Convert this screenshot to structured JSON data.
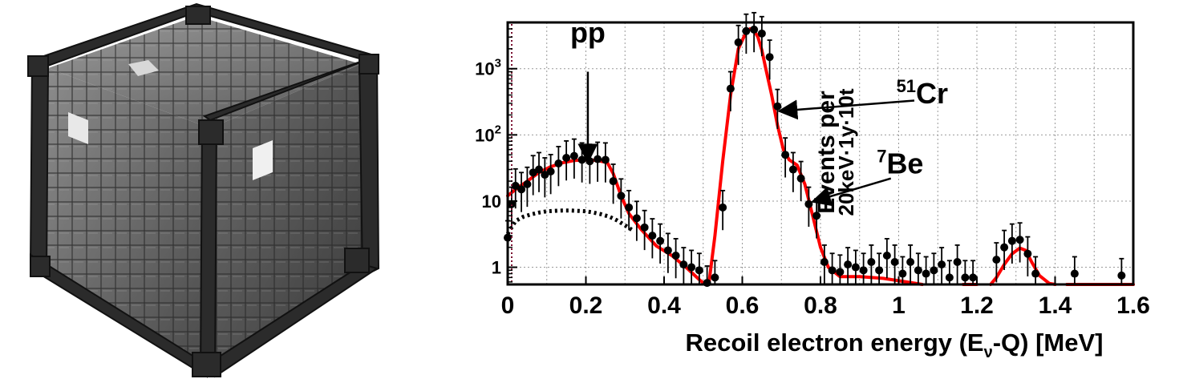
{
  "detector": {
    "style": "grayscale 3D cubic lattice detector with framed edges"
  },
  "chart_data": {
    "type": "scatter",
    "xlabel_main": "Recoil electron energy (E",
    "xlabel_sub": "ν",
    "xlabel_tail": "-Q) [MeV]",
    "ylabel_line1": "Events per",
    "ylabel_line2": "20keV·1y·10t",
    "xlim": [
      0,
      1.6
    ],
    "ylim": [
      0.55,
      5000
    ],
    "yscale": "log",
    "grid": true,
    "x_ticks": [
      {
        "value": 0,
        "label": "0"
      },
      {
        "value": 0.2,
        "label": "0.2"
      },
      {
        "value": 0.4,
        "label": "0.4"
      },
      {
        "value": 0.6,
        "label": "0.6"
      },
      {
        "value": 0.8,
        "label": "0.8"
      },
      {
        "value": 1.0,
        "label": "1"
      },
      {
        "value": 1.2,
        "label": "1.2"
      },
      {
        "value": 1.4,
        "label": "1.4"
      },
      {
        "value": 1.6,
        "label": "1.6"
      }
    ],
    "y_ticks": [
      {
        "value": 1,
        "label": "1",
        "sup": ""
      },
      {
        "value": 10,
        "label": "10",
        "sup": ""
      },
      {
        "value": 100,
        "label": "10",
        "sup": "2"
      },
      {
        "value": 1000,
        "label": "10",
        "sup": "3"
      }
    ],
    "annotations": [
      {
        "base": "pp",
        "sup": "",
        "text_x": 0.205,
        "text_y": 2500,
        "arrow_from": [
          0.205,
          900
        ],
        "arrow_to": [
          0.205,
          42
        ]
      },
      {
        "base": "Cr",
        "sup": "51",
        "text_x": 1.035,
        "text_y": 300,
        "arrow_from": [
          1.04,
          330
        ],
        "arrow_to": [
          0.7,
          230
        ]
      },
      {
        "base": "Be",
        "sup": "7",
        "text_x": 0.985,
        "text_y": 26,
        "arrow_from": [
          0.98,
          22
        ],
        "arrow_to": [
          0.785,
          10
        ]
      }
    ],
    "series": [
      {
        "name": "",
        "style": "solid",
        "color": "#ff0000",
        "x": [
          0.0,
          0.02,
          0.05,
          0.08,
          0.11,
          0.14,
          0.17,
          0.2,
          0.23,
          0.255,
          0.27,
          0.29,
          0.31,
          0.34,
          0.38,
          0.42,
          0.46,
          0.49,
          0.505,
          0.515,
          0.53,
          0.55,
          0.57,
          0.59,
          0.61,
          0.62,
          0.63,
          0.64,
          0.65,
          0.66,
          0.675,
          0.69,
          0.705,
          0.72,
          0.74,
          0.76,
          0.78,
          0.8,
          0.82,
          0.85,
          0.9,
          0.96,
          1.02,
          1.06
        ],
        "y": [
          12,
          15,
          20,
          27,
          33,
          38,
          41,
          42,
          41,
          38,
          26,
          12,
          6.5,
          3.8,
          2.1,
          1.5,
          0.95,
          0.65,
          0.55,
          0.6,
          3,
          40,
          400,
          2000,
          3600,
          4000,
          3800,
          3000,
          1900,
          1000,
          400,
          140,
          60,
          42,
          35,
          18,
          6,
          2,
          1,
          0.72,
          0.72,
          0.68,
          0.6,
          0.55
        ]
      },
      {
        "name": "",
        "style": "solid",
        "color": "#ff0000",
        "x": [
          1.165,
          1.2
        ],
        "y": [
          0.55,
          0.55
        ]
      },
      {
        "name": "",
        "style": "solid",
        "color": "#ff0000",
        "x": [
          1.235,
          1.25,
          1.27,
          1.29,
          1.31,
          1.325,
          1.34,
          1.36,
          1.385,
          1.4
        ],
        "y": [
          0.55,
          0.7,
          1.1,
          1.6,
          1.95,
          1.8,
          1.2,
          0.75,
          0.57,
          0.55
        ]
      },
      {
        "name": "",
        "style": "solid",
        "color": "#ff0000",
        "x": [
          1.43,
          1.6
        ],
        "y": [
          0.55,
          0.55
        ]
      },
      {
        "name": "",
        "style": "dotted",
        "color": "#000000",
        "x": [
          0.0,
          0.02,
          0.04,
          0.06,
          0.08,
          0.1,
          0.12,
          0.14,
          0.16,
          0.18,
          0.2,
          0.22,
          0.24,
          0.26,
          0.28,
          0.3,
          0.32
        ],
        "y": [
          3.2,
          5.0,
          5.8,
          6.3,
          6.7,
          7.0,
          7.1,
          7.2,
          7.2,
          7.1,
          7.0,
          6.7,
          6.3,
          5.8,
          5.1,
          4.3,
          3.6
        ]
      }
    ],
    "points": {
      "x": [
        0.0,
        0.01,
        0.02,
        0.035,
        0.05,
        0.065,
        0.08,
        0.095,
        0.11,
        0.13,
        0.15,
        0.17,
        0.19,
        0.21,
        0.23,
        0.25,
        0.27,
        0.29,
        0.31,
        0.33,
        0.35,
        0.37,
        0.39,
        0.41,
        0.43,
        0.45,
        0.47,
        0.49,
        0.51,
        0.53,
        0.55,
        0.57,
        0.59,
        0.61,
        0.63,
        0.65,
        0.67,
        0.69,
        0.71,
        0.73,
        0.75,
        0.77,
        0.79,
        0.81,
        0.83,
        0.85,
        0.87,
        0.89,
        0.91,
        0.93,
        0.95,
        0.97,
        0.99,
        1.01,
        1.03,
        1.05,
        1.07,
        1.09,
        1.11,
        1.13,
        1.15,
        1.17,
        1.19,
        1.25,
        1.27,
        1.29,
        1.31,
        1.33,
        1.35,
        1.45,
        1.57
      ],
      "y": [
        2.8,
        9,
        17,
        15,
        18,
        27,
        30,
        25,
        28,
        37,
        45,
        48,
        42,
        40,
        43,
        42,
        20,
        12,
        8,
        5.5,
        4,
        3,
        2.5,
        1.8,
        1.5,
        1.1,
        1.0,
        0.9,
        0.58,
        0.7,
        8,
        500,
        2500,
        3700,
        3900,
        3400,
        1500,
        270,
        50,
        30,
        22,
        9,
        6,
        1.2,
        0.9,
        0.85,
        1.1,
        1.0,
        0.9,
        1.2,
        0.9,
        1.5,
        1.2,
        0.8,
        1.2,
        0.9,
        0.8,
        0.9,
        1.1,
        0.7,
        1.2,
        0.7,
        0.7,
        1.3,
        2.0,
        2.5,
        2.6,
        1.6,
        0.8,
        0.8,
        0.75
      ]
    },
    "colors": {
      "fit": "#ff0000",
      "points": "#000000",
      "grid": "#999999"
    }
  }
}
